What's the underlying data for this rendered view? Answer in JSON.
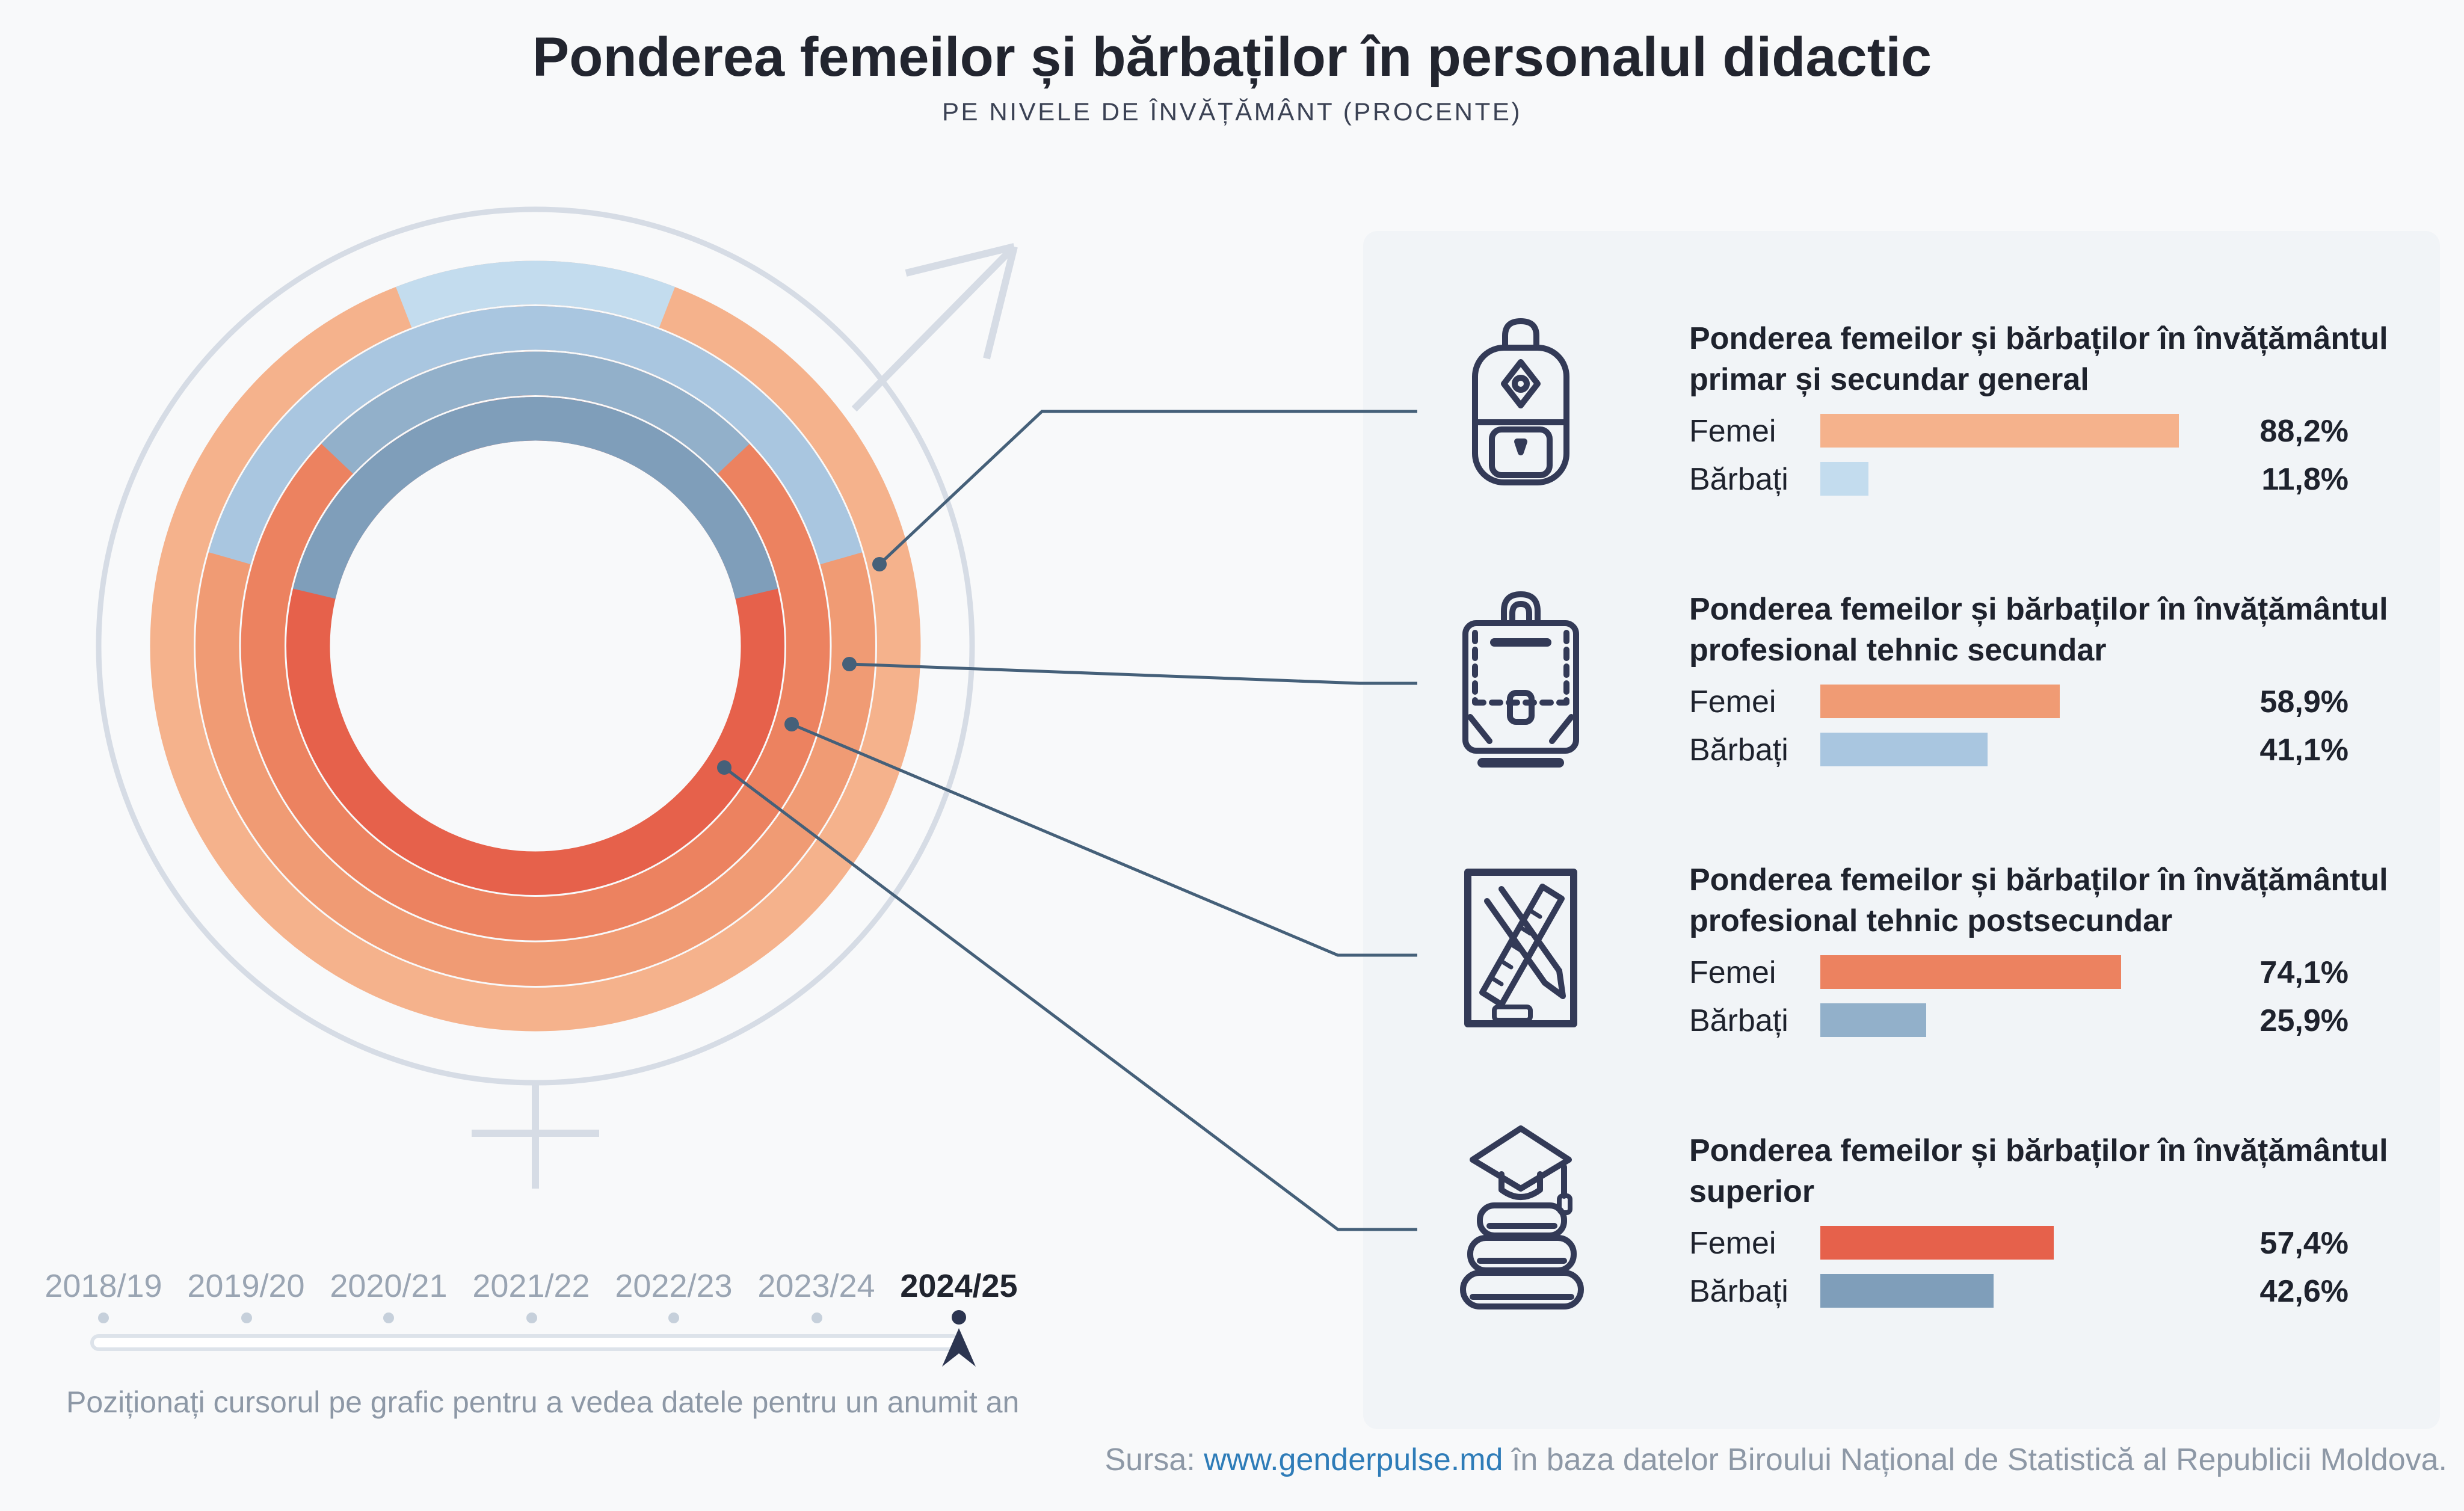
{
  "page": {
    "title": "Ponderea femeilor și bărbaților în personalul didactic",
    "subtitle": "PE NIVELE DE ÎNVĂȚĂMÂNT (PROCENTE)",
    "hint": "Poziționați cursorul pe grafic pentru a vedea datele pentru un anumit an",
    "source_prefix": "Sursa:",
    "source_link": "www.genderpulse.md",
    "source_suffix": "în baza datelor Biroului Național de Statistică al Republicii Moldova."
  },
  "colors": {
    "background": "#f8f9fa",
    "panel": "#f1f4f7",
    "gender_symbol_outline": "#d6dce5",
    "connector": "#456079",
    "link": "#2e7cb8",
    "active_year": "#20242e",
    "inactive_year": "#9aa5b3"
  },
  "timeline": {
    "years": [
      {
        "label": "2018/19",
        "active": false
      },
      {
        "label": "2019/20",
        "active": false
      },
      {
        "label": "2020/21",
        "active": false
      },
      {
        "label": "2021/22",
        "active": false
      },
      {
        "label": "2022/23",
        "active": false
      },
      {
        "label": "2023/24",
        "active": false
      },
      {
        "label": "2024/25",
        "active": true
      }
    ]
  },
  "chart_data": {
    "type": "donut",
    "title": "Ponderea femeilor și bărbaților în personalul didactic",
    "subtitle": "Pe nivele de învățământ (procente)",
    "year": "2024/25",
    "legend": [
      "Femei",
      "Bărbați"
    ],
    "layout": "4 concentric rings, outer to inner; blue (Bărbați) arc centered at 12 o'clock, rest of ring orange (Femei)",
    "rings": [
      {
        "level": "Învățământul primar și secundar general",
        "femei": 88.2,
        "barbati": 11.8,
        "femei_color": "#f5b28c",
        "barbati_color": "#c3dcee"
      },
      {
        "level": "Învățământul profesional tehnic secundar",
        "femei": 58.9,
        "barbati": 41.1,
        "femei_color": "#f09b74",
        "barbati_color": "#a9c6e0"
      },
      {
        "level": "Învățământul profesional tehnic postsecundar",
        "femei": 74.1,
        "barbati": 25.9,
        "femei_color": "#ec8260",
        "barbati_color": "#92b0ca"
      },
      {
        "level": "Învățământul superior",
        "femei": 57.4,
        "barbati": 42.6,
        "femei_color": "#e6614b",
        "barbati_color": "#7f9eba"
      }
    ]
  },
  "sections": [
    {
      "icon": "backpack-icon",
      "title_line1": "Ponderea femeilor și bărbaților în învățământul",
      "title_line2": "primar și secundar general",
      "rows": [
        {
          "label": "Femei",
          "value": 88.2,
          "display": "88,2%",
          "color": "#f5b28c"
        },
        {
          "label": "Bărbați",
          "value": 11.8,
          "display": "11,8%",
          "color": "#c3dcee"
        }
      ]
    },
    {
      "icon": "briefcase-icon",
      "title_line1": "Ponderea femeilor și bărbaților în învățământul",
      "title_line2": "profesional tehnic secundar",
      "rows": [
        {
          "label": "Femei",
          "value": 58.9,
          "display": "58,9%",
          "color": "#f09b74"
        },
        {
          "label": "Bărbați",
          "value": 41.1,
          "display": "41,1%",
          "color": "#a9c6e0"
        }
      ]
    },
    {
      "icon": "pencil-ruler-icon",
      "title_line1": "Ponderea femeilor și bărbaților în învățământul",
      "title_line2": "profesional tehnic postsecundar",
      "rows": [
        {
          "label": "Femei",
          "value": 74.1,
          "display": "74,1%",
          "color": "#ec8260"
        },
        {
          "label": "Bărbați",
          "value": 25.9,
          "display": "25,9%",
          "color": "#92b0ca"
        }
      ]
    },
    {
      "icon": "graduation-books-icon",
      "title_line1": "Ponderea femeilor și bărbaților în învățământul",
      "title_line2": "superior",
      "rows": [
        {
          "label": "Femei",
          "value": 57.4,
          "display": "57,4%",
          "color": "#e6614b"
        },
        {
          "label": "Bărbați",
          "value": 42.6,
          "display": "42,6%",
          "color": "#7f9eba"
        }
      ]
    }
  ]
}
